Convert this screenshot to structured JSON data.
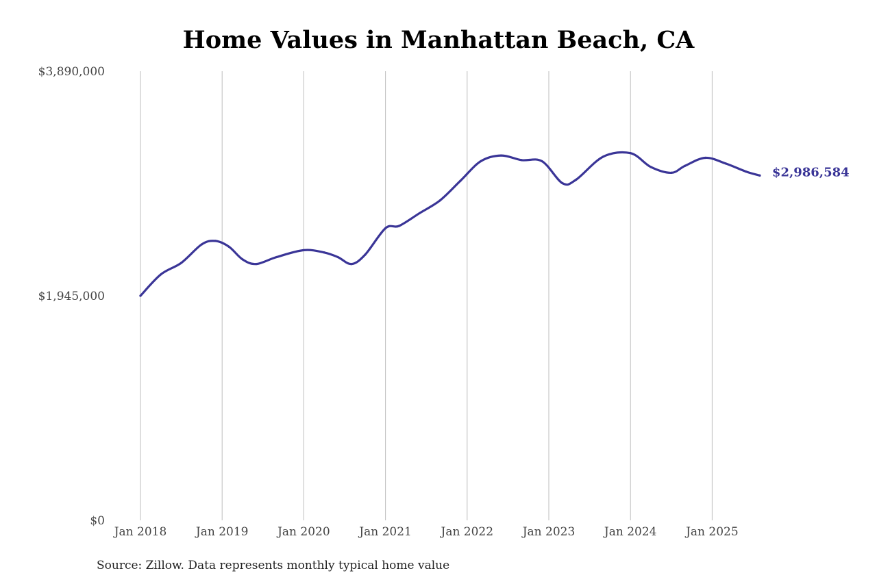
{
  "chart_data": {
    "type": "line",
    "title": "Home Values in Manhattan Beach, CA",
    "xlabel": "",
    "ylabel": "",
    "ylim": [
      0,
      3890000
    ],
    "y_ticks": [
      {
        "value": 0,
        "label": "$0"
      },
      {
        "value": 1945000,
        "label": "$1,945,000"
      },
      {
        "value": 3890000,
        "label": "$3,890,000"
      }
    ],
    "x_ticks": [
      "Jan 2018",
      "Jan 2019",
      "Jan 2020",
      "Jan 2021",
      "Jan 2022",
      "Jan 2023",
      "Jan 2024",
      "Jan 2025"
    ],
    "grid": "vertical",
    "line_color": "#3a3597",
    "end_label": "$2,986,584",
    "series": [
      {
        "values": [
          {
            "x": "2018-01",
            "y": 1945000
          },
          {
            "x": "2018-04",
            "y": 2130000
          },
          {
            "x": "2018-07",
            "y": 2230000
          },
          {
            "x": "2018-10",
            "y": 2390000
          },
          {
            "x": "2018-12",
            "y": 2420000
          },
          {
            "x": "2019-02",
            "y": 2370000
          },
          {
            "x": "2019-04",
            "y": 2260000
          },
          {
            "x": "2019-06",
            "y": 2220000
          },
          {
            "x": "2019-09",
            "y": 2280000
          },
          {
            "x": "2020-01",
            "y": 2340000
          },
          {
            "x": "2020-04",
            "y": 2320000
          },
          {
            "x": "2020-06",
            "y": 2280000
          },
          {
            "x": "2020-08",
            "y": 2220000
          },
          {
            "x": "2020-10",
            "y": 2300000
          },
          {
            "x": "2021-01",
            "y": 2530000
          },
          {
            "x": "2021-03",
            "y": 2550000
          },
          {
            "x": "2021-06",
            "y": 2660000
          },
          {
            "x": "2021-09",
            "y": 2770000
          },
          {
            "x": "2021-12",
            "y": 2940000
          },
          {
            "x": "2022-03",
            "y": 3110000
          },
          {
            "x": "2022-06",
            "y": 3160000
          },
          {
            "x": "2022-09",
            "y": 3120000
          },
          {
            "x": "2022-12",
            "y": 3110000
          },
          {
            "x": "2023-03",
            "y": 2920000
          },
          {
            "x": "2023-05",
            "y": 2950000
          },
          {
            "x": "2023-09",
            "y": 3150000
          },
          {
            "x": "2024-01",
            "y": 3180000
          },
          {
            "x": "2024-04",
            "y": 3060000
          },
          {
            "x": "2024-07",
            "y": 3010000
          },
          {
            "x": "2024-09",
            "y": 3070000
          },
          {
            "x": "2024-12",
            "y": 3140000
          },
          {
            "x": "2025-03",
            "y": 3090000
          },
          {
            "x": "2025-06",
            "y": 3020000
          },
          {
            "x": "2025-08",
            "y": 2986584
          }
        ]
      }
    ]
  },
  "footer": {
    "source": "Source: Zillow. Data represents monthly typical home value"
  }
}
